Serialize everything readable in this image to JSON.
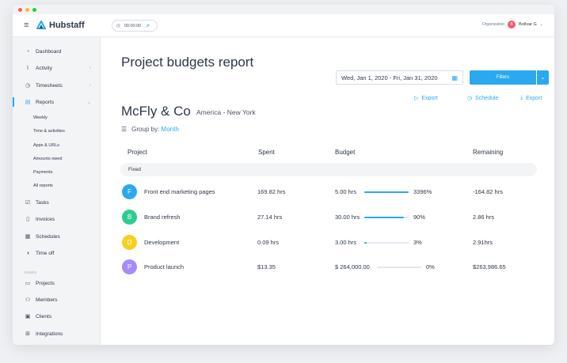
{
  "app": {
    "name": "Hubstaff"
  },
  "topbar": {
    "timer": "00:00:00",
    "org_label": "Organization",
    "org_initial": "B",
    "user": "Bolivar G"
  },
  "sidebar": {
    "items": [
      {
        "label": "Dashboard",
        "icon": "dashboard-icon",
        "glyph": "◔"
      },
      {
        "label": "Activity",
        "icon": "activity-icon",
        "glyph": "⌇",
        "chevron": "‹"
      },
      {
        "label": "Timesheets",
        "icon": "clock-icon",
        "glyph": "◷",
        "chevron": "‹"
      },
      {
        "label": "Reports",
        "icon": "reports-icon",
        "glyph": "▤",
        "chevron": "⌄",
        "active": true
      },
      {
        "label": "Tasks",
        "icon": "tasks-icon",
        "glyph": "☑"
      },
      {
        "label": "Invoices",
        "icon": "invoice-icon",
        "glyph": "▯"
      },
      {
        "label": "Schedules",
        "icon": "calendar-icon",
        "glyph": "▦"
      },
      {
        "label": "Time off",
        "icon": "time-off-icon",
        "glyph": "◑"
      },
      {
        "label": "Projects",
        "icon": "folder-icon",
        "glyph": "▭"
      },
      {
        "label": "Members",
        "icon": "members-icon",
        "glyph": "⚇"
      },
      {
        "label": "Clients",
        "icon": "clients-icon",
        "glyph": "▣"
      },
      {
        "label": "Integrations",
        "icon": "integrations-icon",
        "glyph": "⊞"
      }
    ],
    "report_subitems": [
      "Weekly",
      "Time & activities",
      "Apps & URLs",
      "Amounts owed",
      "Payments",
      "All reports"
    ],
    "admin_label": "ADMIN"
  },
  "main": {
    "title": "Project budgets report",
    "date_range": "Wed, Jan 1, 2020 - Fri, Jan 31, 2020",
    "filters_label": "Filters",
    "actions": {
      "export1": "Export",
      "schedule": "Schedule",
      "export2": "Export"
    },
    "company": "McFly & Co",
    "location": "America - New York",
    "group_by_label": "Group by:",
    "group_by_value": "Month"
  },
  "table": {
    "headers": [
      "Project",
      "Spent",
      "Budget",
      "Remaining"
    ],
    "group_label": "Fixed",
    "rows": [
      {
        "initial": "F",
        "color": "#2aa9f0",
        "project": "Front end marketing pages",
        "spent": "169.82 hrs",
        "budget": "5.00 hrs",
        "percent": "3396%",
        "fill": 1.0,
        "remaining": "-164.82 hrs"
      },
      {
        "initial": "B",
        "color": "#2ecc8f",
        "project": "Brand refresh",
        "spent": "27.14 hrs",
        "budget": "30.00 hrs",
        "percent": "90%",
        "fill": 0.9,
        "remaining": "2.86 hrs"
      },
      {
        "initial": "D",
        "color": "#f5d020",
        "project": "Development",
        "spent": "0.09 hrs",
        "budget": "3.00 hrs",
        "percent": "3%",
        "fill": 0.05,
        "remaining": "2.91hrs"
      },
      {
        "initial": "P",
        "color": "#a78bfa",
        "project": "Product launch",
        "spent": "$13.35",
        "budget": "$ 264,000.00",
        "percent": "0%",
        "fill": 0,
        "remaining": "$263,986.65"
      }
    ]
  }
}
